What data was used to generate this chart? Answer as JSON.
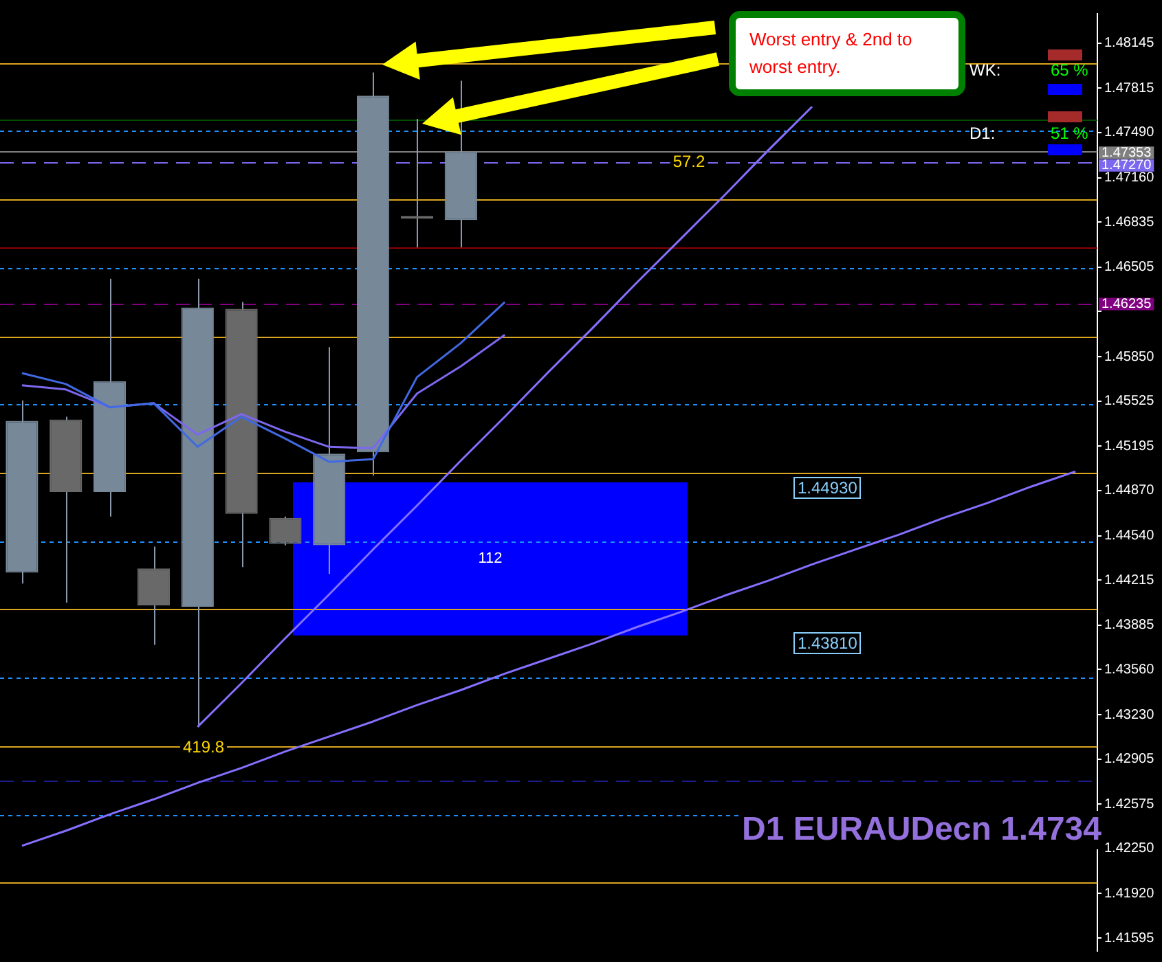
{
  "chart_data": {
    "type": "candlestick",
    "categories": [
      null,
      null,
      null,
      null,
      null,
      null,
      null,
      null,
      null,
      null,
      null,
      null,
      null,
      null,
      null,
      null,
      null,
      null,
      null,
      null,
      null,
      null,
      null,
      null,
      null
    ],
    "ohlc": [
      [
        1.4427,
        1.4553,
        1.4419,
        1.4538
      ],
      [
        1.4539,
        1.4541,
        1.4405,
        1.4486
      ],
      [
        1.4486,
        1.4642,
        1.4468,
        1.4567
      ],
      [
        1.443,
        1.4446,
        1.4374,
        1.4403
      ],
      [
        1.4402,
        1.4642,
        1.4314,
        1.4621
      ],
      [
        1.462,
        1.4625,
        1.4431,
        1.447
      ],
      [
        1.4467,
        1.4468,
        1.4447,
        1.4448
      ],
      [
        1.4447,
        1.4592,
        1.4426,
        1.4514
      ],
      [
        1.4515,
        1.4793,
        1.4498,
        1.4776
      ],
      [
        1.4688,
        1.4759,
        1.4665,
        1.4686
      ],
      [
        1.4685,
        1.4787,
        1.4665,
        1.4735
      ],
      null,
      null,
      null,
      null,
      null,
      null,
      null,
      null,
      null,
      null,
      null,
      null,
      null,
      null
    ],
    "colors": [
      "#778899",
      "#696969",
      "#778899",
      "#696969",
      "#778899",
      "#696969",
      "#696969",
      "#778899",
      "#778899",
      "#696969",
      "#778899",
      null,
      null,
      null,
      null,
      null,
      null,
      null,
      null,
      null,
      null,
      null,
      null,
      null,
      null
    ],
    "series": [
      {
        "type": "line",
        "color": "#4169e1",
        "values": [
          1.4573,
          1.4565,
          1.4548,
          1.4551,
          1.4519,
          1.4541,
          1.4525,
          1.4508,
          1.451,
          1.457,
          1.4595,
          1.4625,
          null,
          null,
          null,
          null,
          null,
          null,
          null,
          null,
          null,
          null,
          null,
          null,
          null
        ]
      },
      {
        "type": "line",
        "color": "#7b68ee",
        "values": [
          1.4564,
          1.4561,
          1.4548,
          1.4551,
          1.4528,
          1.4543,
          1.453,
          1.4519,
          1.4518,
          1.4558,
          1.4578,
          1.4601,
          null,
          null,
          null,
          null,
          null,
          null,
          null,
          null,
          null,
          null,
          null,
          null,
          null
        ]
      },
      {
        "type": "line",
        "color": "#8470ff",
        "values": [
          null,
          null,
          null,
          null,
          1.4314,
          1.4346,
          1.4379,
          1.4411,
          1.4444,
          1.4476,
          1.4509,
          1.4541,
          1.4574,
          1.4606,
          1.4639,
          1.4671,
          1.4703,
          1.4736,
          1.4768,
          null,
          null,
          null,
          null,
          null,
          null
        ]
      },
      {
        "type": "line",
        "color": "#8470ff",
        "values": [
          1.4227,
          1.4238,
          1.425,
          1.4261,
          1.4273,
          1.4284,
          1.4296,
          1.4307,
          1.4318,
          1.433,
          1.4341,
          1.4353,
          1.4364,
          1.4375,
          1.4387,
          1.4398,
          1.441,
          1.4421,
          1.4433,
          1.4444,
          1.4455,
          1.4467,
          1.4478,
          1.449,
          1.4501
        ]
      }
    ],
    "ylim": [
      1.415,
      1.4836
    ],
    "yticks": [
      1.48145,
      1.47815,
      {
        "value": 1.4749,
        "label": "1.47490"
      },
      {
        "value": 1.4716,
        "label": "1.47160"
      },
      1.46835,
      1.46505,
      {
        "value": 1.4618,
        "label": null
      },
      {
        "value": 1.4585,
        "label": "1.45850"
      },
      1.45525,
      1.45195,
      {
        "value": 1.4487,
        "label": "1.44870"
      },
      {
        "value": 1.4454,
        "label": "1.44540"
      },
      1.44215,
      1.43885,
      {
        "value": 1.4356,
        "label": "1.43560"
      },
      {
        "value": 1.4323,
        "label": "1.43230"
      },
      1.42905,
      1.42575,
      {
        "value": 1.4225,
        "label": "1.42250"
      },
      {
        "value": 1.4192,
        "label": "1.41920"
      },
      1.41595
    ],
    "tick_labels": "y",
    "ref_lines": [
      {
        "axis": "y",
        "value": 1.48,
        "color": "#daa520"
      },
      {
        "axis": "y",
        "value": 1.47,
        "color": "#daa520"
      },
      {
        "axis": "y",
        "value": 1.46,
        "color": "#daa520"
      },
      {
        "axis": "y",
        "value": 1.45,
        "color": "#daa520"
      },
      {
        "axis": "y",
        "value": 1.44,
        "color": "#daa520"
      },
      {
        "axis": "y",
        "value": 1.43,
        "color": "#daa520"
      },
      {
        "axis": "y",
        "value": 1.42,
        "color": "#daa520"
      },
      {
        "axis": "y",
        "value": 1.475,
        "color": "#1e90ff",
        "line_style": "dotted"
      },
      {
        "axis": "y",
        "value": 1.465,
        "color": "#1e90ff",
        "line_style": "dotted"
      },
      {
        "axis": "y",
        "value": 1.455,
        "color": "#1e90ff",
        "line_style": "dotted"
      },
      {
        "axis": "y",
        "value": 1.445,
        "color": "#1e90ff",
        "line_style": "dotted"
      },
      {
        "axis": "y",
        "value": 1.435,
        "color": "#1e90ff",
        "line_style": "dotted"
      },
      {
        "axis": "y",
        "value": 1.425,
        "color": "#1e90ff",
        "line_style": "dotted"
      },
      {
        "axis": "y",
        "value": 1.4275,
        "color": "#1c1c8c",
        "line_style": "dashed"
      },
      {
        "axis": "y",
        "value": 1.4759,
        "color": "#004d00"
      },
      {
        "axis": "y",
        "value": 1.4665,
        "color": "#8b0000"
      },
      {
        "axis": "y",
        "value": 1.47353,
        "label": "1.47353",
        "color": "#808080"
      },
      {
        "axis": "y",
        "value": 1.4727,
        "label": "1.47270",
        "color": "#7b68ee",
        "line_style": "dashed"
      },
      {
        "axis": "y",
        "value": 1.46235,
        "label": "1.46235",
        "color": "#800080",
        "line_style": "dashed"
      }
    ],
    "bands": [
      {
        "axis": "y",
        "from": 1.4381,
        "to": 1.4493,
        "label": "112",
        "color": "#0000ff"
      }
    ],
    "annotations": [
      "Worst entry & 2nd to worst entry.",
      "WK:",
      "65 %",
      "D1:",
      "51 %",
      {
        "text": "57.2",
        "y": 1.4727
      },
      "1.44930",
      "1.43810",
      {
        "text": "419.8",
        "y": 1.4314
      },
      "D1 EURAUDecn 1.4734"
    ]
  }
}
